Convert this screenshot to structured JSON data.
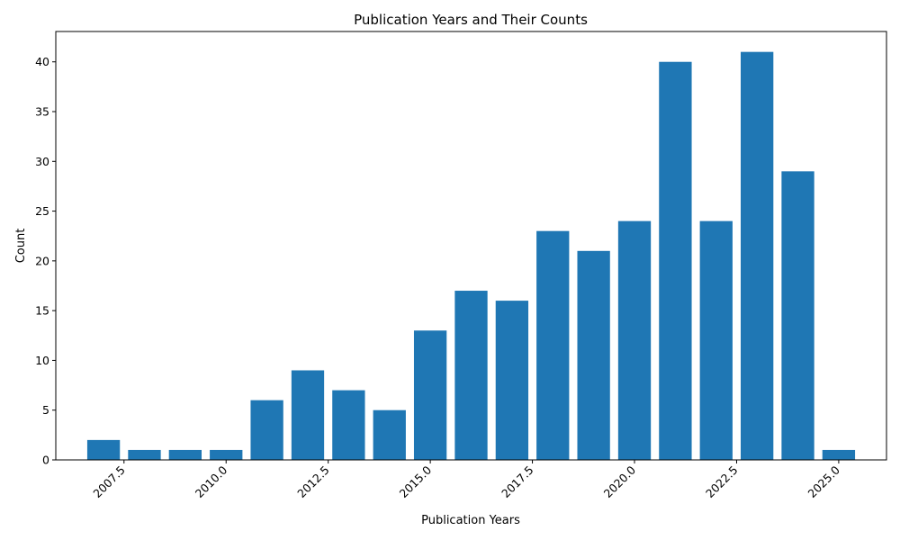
{
  "chart_data": {
    "type": "bar",
    "title": "Publication Years and Their Counts",
    "xlabel": "Publication Years",
    "ylabel": "Count",
    "x": [
      2007,
      2008,
      2009,
      2010,
      2011,
      2012,
      2013,
      2014,
      2015,
      2016,
      2017,
      2018,
      2019,
      2020,
      2021,
      2022,
      2023,
      2024,
      2025
    ],
    "values": [
      2,
      1,
      1,
      1,
      6,
      9,
      7,
      5,
      13,
      17,
      16,
      23,
      21,
      24,
      40,
      24,
      41,
      29,
      1
    ],
    "xticks": [
      "2007.5",
      "2010.0",
      "2012.5",
      "2015.0",
      "2017.5",
      "2020.0",
      "2022.5",
      "2025.0"
    ],
    "yticks": [
      "0",
      "5",
      "10",
      "15",
      "20",
      "25",
      "30",
      "35",
      "40"
    ],
    "xlim": [
      2005.83,
      2026.17
    ],
    "ylim": [
      0,
      43.05
    ],
    "bar_color": "#1f77b4",
    "grid": false,
    "legend": "none"
  }
}
